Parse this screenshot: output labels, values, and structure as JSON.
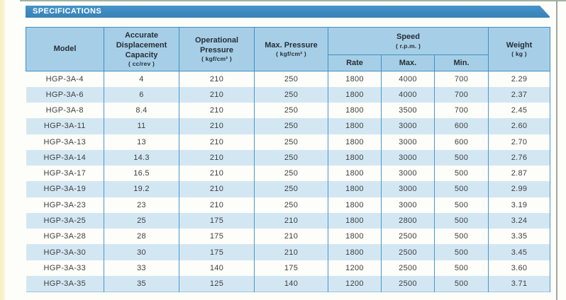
{
  "banner": {
    "title": "SPECIFICATIONS"
  },
  "colors": {
    "banner_blue": "#3d89c0",
    "header_fill": "#a6cfe7",
    "stripe_fill": "#d3e7f3",
    "grid_blue": "#4a97cd",
    "page_edge_yellow": "#f7f2c6"
  },
  "table": {
    "headers": {
      "model": {
        "label": "Model"
      },
      "capacity": {
        "label": "Accurate Displacement Capacity",
        "unit": "( cc/rev )"
      },
      "op_pressure": {
        "label": "Operational Pressure",
        "unit": "( kgf/cm² )"
      },
      "max_pressure": {
        "label": "Max. Pressure",
        "unit": "( kgf/cm² )"
      },
      "speed": {
        "label": "Speed",
        "unit": "( r.p.m. )",
        "sub": {
          "rate": "Rate",
          "max": "Max.",
          "min": "Min."
        }
      },
      "weight": {
        "label": "Weight",
        "unit": "( kg )"
      }
    },
    "row_keys": [
      "model",
      "capacity",
      "op_pressure",
      "max_pressure",
      "speed_rate",
      "speed_max",
      "speed_min",
      "weight"
    ],
    "rows": [
      {
        "model": "HGP-3A-4",
        "capacity": "4",
        "op_pressure": "210",
        "max_pressure": "250",
        "speed_rate": "1800",
        "speed_max": "4000",
        "speed_min": "700",
        "weight": "2.29"
      },
      {
        "model": "HGP-3A-6",
        "capacity": "6",
        "op_pressure": "210",
        "max_pressure": "250",
        "speed_rate": "1800",
        "speed_max": "4000",
        "speed_min": "700",
        "weight": "2.37"
      },
      {
        "model": "HGP-3A-8",
        "capacity": "8.4",
        "op_pressure": "210",
        "max_pressure": "250",
        "speed_rate": "1800",
        "speed_max": "3500",
        "speed_min": "700",
        "weight": "2.45"
      },
      {
        "model": "HGP-3A-11",
        "capacity": "11",
        "op_pressure": "210",
        "max_pressure": "250",
        "speed_rate": "1800",
        "speed_max": "3000",
        "speed_min": "600",
        "weight": "2.60"
      },
      {
        "model": "HGP-3A-13",
        "capacity": "13",
        "op_pressure": "210",
        "max_pressure": "250",
        "speed_rate": "1800",
        "speed_max": "3000",
        "speed_min": "600",
        "weight": "2.70"
      },
      {
        "model": "HGP-3A-14",
        "capacity": "14.3",
        "op_pressure": "210",
        "max_pressure": "250",
        "speed_rate": "1800",
        "speed_max": "3000",
        "speed_min": "500",
        "weight": "2.76"
      },
      {
        "model": "HGP-3A-17",
        "capacity": "16.5",
        "op_pressure": "210",
        "max_pressure": "250",
        "speed_rate": "1800",
        "speed_max": "3000",
        "speed_min": "500",
        "weight": "2.87"
      },
      {
        "model": "HGP-3A-19",
        "capacity": "19.2",
        "op_pressure": "210",
        "max_pressure": "250",
        "speed_rate": "1800",
        "speed_max": "3000",
        "speed_min": "500",
        "weight": "2.99"
      },
      {
        "model": "HGP-3A-23",
        "capacity": "23",
        "op_pressure": "210",
        "max_pressure": "250",
        "speed_rate": "1800",
        "speed_max": "3000",
        "speed_min": "500",
        "weight": "3.19"
      },
      {
        "model": "HGP-3A-25",
        "capacity": "25",
        "op_pressure": "175",
        "max_pressure": "210",
        "speed_rate": "1800",
        "speed_max": "2800",
        "speed_min": "500",
        "weight": "3.24"
      },
      {
        "model": "HGP-3A-28",
        "capacity": "28",
        "op_pressure": "175",
        "max_pressure": "210",
        "speed_rate": "1800",
        "speed_max": "2500",
        "speed_min": "500",
        "weight": "3.35"
      },
      {
        "model": "HGP-3A-30",
        "capacity": "30",
        "op_pressure": "175",
        "max_pressure": "210",
        "speed_rate": "1800",
        "speed_max": "2500",
        "speed_min": "500",
        "weight": "3.45"
      },
      {
        "model": "HGP-3A-33",
        "capacity": "33",
        "op_pressure": "140",
        "max_pressure": "175",
        "speed_rate": "1200",
        "speed_max": "2500",
        "speed_min": "500",
        "weight": "3.60"
      },
      {
        "model": "HGP-3A-35",
        "capacity": "35",
        "op_pressure": "125",
        "max_pressure": "140",
        "speed_rate": "1200",
        "speed_max": "2500",
        "speed_min": "500",
        "weight": "3.71"
      }
    ]
  }
}
